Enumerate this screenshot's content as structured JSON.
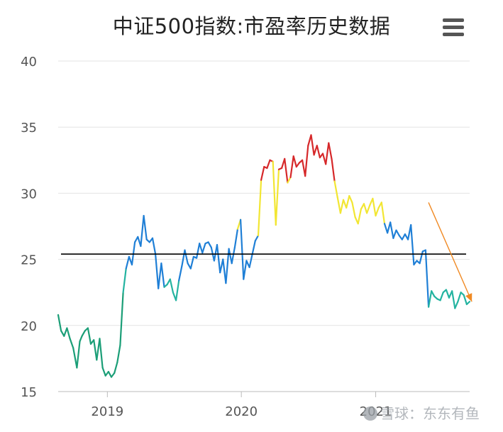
{
  "title": "中证500指数:市盈率历史数据",
  "menu_icon": "hamburger-menu-icon",
  "watermark": "雪球：东东有鱼",
  "chart_data": {
    "type": "line",
    "title": "中证500指数:市盈率历史数据",
    "xlabel": "",
    "ylabel": "",
    "ylim": [
      15,
      40
    ],
    "yticks": [
      15,
      20,
      25,
      30,
      35,
      40
    ],
    "xticks": [
      "2019",
      "2020",
      "2021"
    ],
    "x_range": [
      "2018-08-20",
      "2021-09-14"
    ],
    "grid": true,
    "reference_line": {
      "value": 25.4,
      "color": "#000000"
    },
    "annotation_arrow": {
      "from": [
        "2021-05-25",
        29.3
      ],
      "to": [
        "2021-09-20",
        21.8
      ],
      "color": "#f08a24"
    },
    "color_bands": [
      {
        "max": 21,
        "color": "#1b9e77"
      },
      {
        "max": 23.5,
        "color": "#23b3a0"
      },
      {
        "max": 27.5,
        "color": "#1f7fd6"
      },
      {
        "max": 31.5,
        "color": "#f2e633"
      },
      {
        "max": 99,
        "color": "#d6282a"
      }
    ],
    "series": [
      {
        "dates": [
          "2018-08-20",
          "2018-08-28",
          "2018-09-05",
          "2018-09-13",
          "2018-09-21",
          "2018-09-30",
          "2018-10-10",
          "2018-10-18",
          "2018-10-24",
          "2018-11-01",
          "2018-11-09",
          "2018-11-17",
          "2018-11-25",
          "2018-12-03",
          "2018-12-11",
          "2018-12-19",
          "2018-12-27",
          "2019-01-04",
          "2019-01-12",
          "2019-01-20",
          "2019-01-28",
          "2019-02-05",
          "2019-02-13",
          "2019-02-21",
          "2019-03-01",
          "2019-03-09",
          "2019-03-17",
          "2019-03-25",
          "2019-04-02",
          "2019-04-10",
          "2019-04-18",
          "2019-04-26",
          "2019-05-04",
          "2019-05-12",
          "2019-05-20",
          "2019-05-28",
          "2019-06-05",
          "2019-06-13",
          "2019-06-21",
          "2019-06-29",
          "2019-07-07",
          "2019-07-15",
          "2019-07-23",
          "2019-07-31",
          "2019-08-08",
          "2019-08-16",
          "2019-08-24",
          "2019-09-01",
          "2019-09-09",
          "2019-09-17",
          "2019-09-25",
          "2019-10-03",
          "2019-10-11",
          "2019-10-19",
          "2019-10-27",
          "2019-11-04",
          "2019-11-12",
          "2019-11-20",
          "2019-11-28",
          "2019-12-06",
          "2019-12-14",
          "2019-12-22",
          "2019-12-30",
          "2020-01-07",
          "2020-01-15",
          "2020-01-23",
          "2020-01-31",
          "2020-02-08",
          "2020-02-16",
          "2020-02-24",
          "2020-03-03",
          "2020-03-11",
          "2020-03-19",
          "2020-03-27",
          "2020-04-04",
          "2020-04-12",
          "2020-04-20",
          "2020-04-28",
          "2020-05-06",
          "2020-05-14",
          "2020-05-22",
          "2020-05-30",
          "2020-06-07",
          "2020-06-15",
          "2020-06-23",
          "2020-07-01",
          "2020-07-09",
          "2020-07-17",
          "2020-07-25",
          "2020-08-02",
          "2020-08-10",
          "2020-08-18",
          "2020-08-26",
          "2020-09-03",
          "2020-09-11",
          "2020-09-19",
          "2020-09-27",
          "2020-10-05",
          "2020-10-13",
          "2020-10-21",
          "2020-10-29",
          "2020-11-06",
          "2020-11-14",
          "2020-11-22",
          "2020-11-30",
          "2020-12-08",
          "2020-12-16",
          "2020-12-24",
          "2021-01-01",
          "2021-01-09",
          "2021-01-17",
          "2021-01-25",
          "2021-02-02",
          "2021-02-10",
          "2021-02-18",
          "2021-02-26",
          "2021-03-06",
          "2021-03-14",
          "2021-03-22",
          "2021-03-30",
          "2021-04-07",
          "2021-04-15",
          "2021-04-23",
          "2021-05-01",
          "2021-05-09",
          "2021-05-17",
          "2021-05-25",
          "2021-06-02",
          "2021-06-10",
          "2021-06-18",
          "2021-06-26",
          "2021-07-04",
          "2021-07-12",
          "2021-07-20",
          "2021-07-28",
          "2021-08-05",
          "2021-08-13",
          "2021-08-21",
          "2021-08-29",
          "2021-09-06",
          "2021-09-14"
        ],
        "values": [
          20.8,
          19.6,
          19.2,
          19.8,
          19.0,
          18.3,
          16.8,
          18.8,
          19.2,
          19.6,
          19.8,
          18.6,
          18.9,
          17.4,
          19.0,
          16.8,
          16.2,
          16.5,
          16.1,
          16.4,
          17.2,
          18.5,
          22.5,
          24.3,
          25.2,
          24.6,
          26.3,
          26.7,
          26.0,
          28.3,
          26.5,
          26.3,
          26.6,
          25.4,
          22.8,
          24.7,
          22.9,
          23.1,
          23.5,
          22.5,
          21.9,
          23.4,
          24.5,
          25.7,
          24.7,
          24.3,
          25.2,
          25.1,
          26.2,
          25.5,
          26.2,
          26.3,
          25.9,
          24.9,
          26.1,
          24.0,
          25.0,
          23.2,
          25.8,
          24.7,
          25.9,
          27.3,
          28.0,
          23.5,
          24.9,
          24.4,
          25.4,
          26.4,
          26.8,
          31.0,
          32.0,
          31.9,
          32.5,
          32.4,
          27.6,
          31.8,
          31.9,
          32.6,
          30.8,
          31.2,
          32.8,
          32.0,
          32.3,
          32.5,
          31.3,
          33.6,
          34.4,
          32.9,
          33.6,
          32.7,
          33.0,
          32.2,
          33.8,
          32.6,
          30.9,
          29.7,
          28.5,
          29.5,
          28.9,
          29.8,
          29.3,
          28.2,
          27.7,
          28.8,
          29.2,
          28.5,
          29.1,
          29.6,
          28.3,
          28.9,
          29.3,
          27.7,
          27.0,
          27.8,
          26.6,
          27.2,
          26.8,
          26.5,
          26.9,
          26.5,
          27.6,
          24.6,
          24.9,
          24.7,
          25.6,
          25.7,
          21.4,
          22.6,
          22.2,
          22.0,
          21.9,
          22.5,
          22.7,
          22.1,
          22.6,
          21.3,
          21.8,
          22.5,
          22.3,
          21.6,
          21.8
        ]
      }
    ]
  }
}
